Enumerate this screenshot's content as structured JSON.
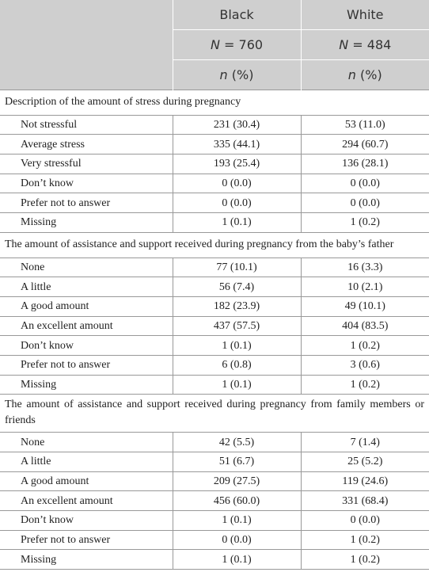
{
  "header": {
    "groups": [
      "Black",
      "White"
    ],
    "sizes": [
      {
        "symbol": "N",
        "text": "= 760"
      },
      {
        "symbol": "N",
        "text": "= 484"
      }
    ],
    "units": [
      {
        "symbol": "n",
        "text": "(%)"
      },
      {
        "symbol": "n",
        "text": "(%)"
      }
    ]
  },
  "sections": [
    {
      "title": "Description of the amount of stress during pregnancy",
      "rows": [
        [
          "Not stressful",
          "231 (30.4)",
          "53 (11.0)"
        ],
        [
          "Average stress",
          "335 (44.1)",
          "294 (60.7)"
        ],
        [
          "Very stressful",
          "193 (25.4)",
          "136 (28.1)"
        ],
        [
          "Don’t know",
          "0 (0.0)",
          "0 (0.0)"
        ],
        [
          "Prefer not to answer",
          "0 (0.0)",
          "0 (0.0)"
        ],
        [
          "Missing",
          "1 (0.1)",
          "1 (0.2)"
        ]
      ]
    },
    {
      "title": "The amount of assistance and support received during pregnancy from the baby’s father",
      "rows": [
        [
          "None",
          "77 (10.1)",
          "16 (3.3)"
        ],
        [
          "A little",
          "56 (7.4)",
          "10 (2.1)"
        ],
        [
          "A good amount",
          "182 (23.9)",
          "49 (10.1)"
        ],
        [
          "An excellent amount",
          "437 (57.5)",
          "404 (83.5)"
        ],
        [
          "Don’t know",
          "1 (0.1)",
          "1 (0.2)"
        ],
        [
          "Prefer not to answer",
          "6 (0.8)",
          "3 (0.6)"
        ],
        [
          "Missing",
          "1 (0.1)",
          "1 (0.2)"
        ]
      ]
    },
    {
      "title": "The amount of assistance and support received during pregnancy from family members or friends",
      "rows": [
        [
          "None",
          "42 (5.5)",
          "7 (1.4)"
        ],
        [
          "A little",
          "51 (6.7)",
          "25 (5.2)"
        ],
        [
          "A good amount",
          "209 (27.5)",
          "119 (24.6)"
        ],
        [
          "An excellent amount",
          "456 (60.0)",
          "331 (68.4)"
        ],
        [
          "Don’t know",
          "1 (0.1)",
          "0 (0.0)"
        ],
        [
          "Prefer not to answer",
          "0 (0.0)",
          "1 (0.2)"
        ],
        [
          "Missing",
          "1 (0.1)",
          "1 (0.2)"
        ]
      ]
    }
  ]
}
